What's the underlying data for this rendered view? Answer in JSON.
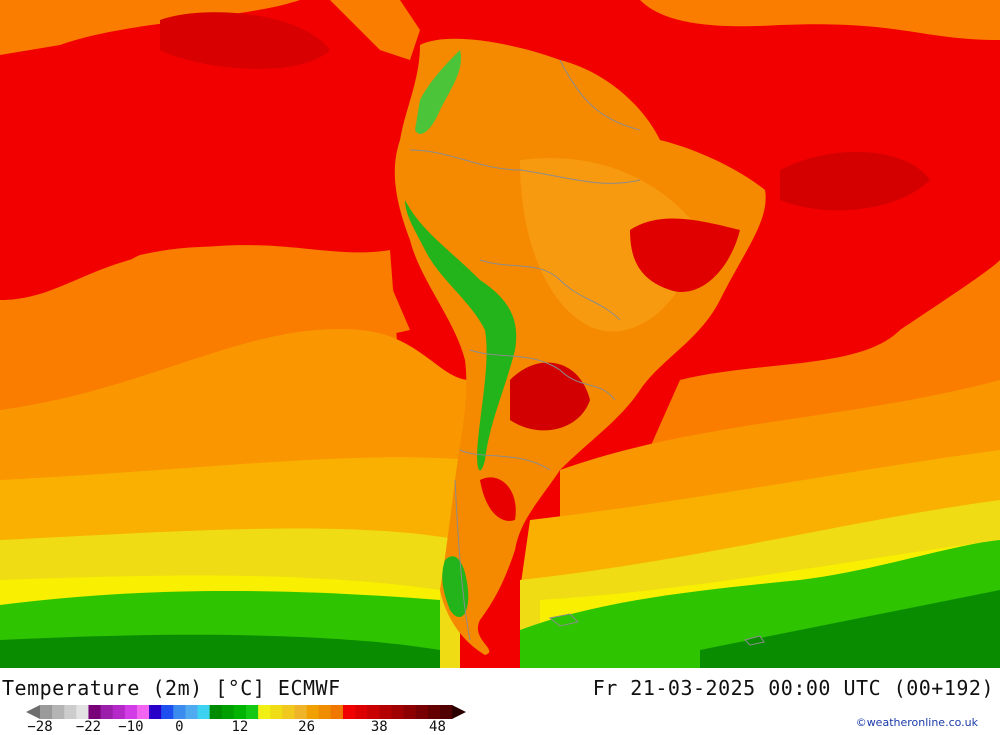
{
  "map": {
    "title": "Temperature (2m) [°C] ECMWF",
    "valid_time": "Fr 21-03-2025 00:00 UTC (00+192)",
    "credit": "©weatheronline.co.uk",
    "region": "South America",
    "colors": {
      "ocean_red": "#f20000",
      "dark_red": "#c80000",
      "orange": "#fa7d00",
      "light_orange": "#fa9600",
      "amber": "#fab000",
      "yellow": "#f0dc14",
      "bright_yellow": "#f8f000",
      "green": "#2ec400",
      "dark_green": "#0a8c00",
      "land_orange": "#f58a00",
      "andes_green": "#22b41a",
      "border": "#8c8c8c"
    }
  },
  "legend": {
    "arrow_left_color": "#6e6e6e",
    "arrow_right_color": "#2a0000",
    "colors": [
      "#9a9a9a",
      "#b4b4b4",
      "#cccccc",
      "#e2e2e2",
      "#780078",
      "#9a1eaa",
      "#b428c8",
      "#d23ce6",
      "#f064f0",
      "#2800c8",
      "#1e50f0",
      "#3c8cf0",
      "#50aaf0",
      "#3cd2f0",
      "#008c00",
      "#00a000",
      "#00b400",
      "#14c814",
      "#f0f014",
      "#f0dc14",
      "#f0c81e",
      "#f0b428",
      "#f0a000",
      "#f08c00",
      "#f07800",
      "#f00000",
      "#dc0000",
      "#c80000",
      "#b40000",
      "#a00000",
      "#8c0000",
      "#780000",
      "#640000",
      "#500000"
    ],
    "ticks": [
      {
        "label": "−28",
        "index": 0
      },
      {
        "label": "−22",
        "index": 4
      },
      {
        "label": "−10",
        "index": 7.5
      },
      {
        "label": "0",
        "index": 11.5
      },
      {
        "label": "12",
        "index": 16.5
      },
      {
        "label": "26",
        "index": 22
      },
      {
        "label": "38",
        "index": 28
      },
      {
        "label": "48",
        "index": 32.8
      }
    ]
  }
}
